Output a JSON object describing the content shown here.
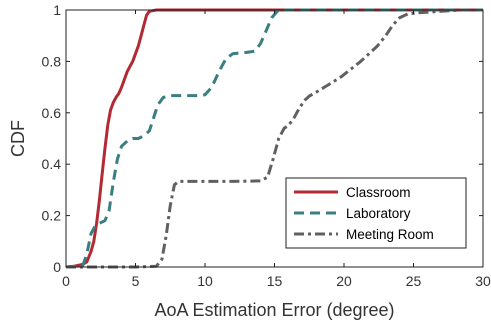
{
  "chart_data": {
    "type": "line",
    "title": "",
    "xlabel": "AoA Estimation Error (degree)",
    "ylabel": "CDF",
    "xlim": [
      0,
      30
    ],
    "ylim": [
      0,
      1
    ],
    "xticks": [
      "0",
      "5",
      "10",
      "15",
      "20",
      "25",
      "30"
    ],
    "yticks": [
      "0",
      "0.2",
      "0.4",
      "0.6",
      "0.8",
      "1"
    ],
    "grid": false,
    "legend_position": "bottom-right",
    "series": [
      {
        "name": "Classroom",
        "color": "#b22a33",
        "style": "solid",
        "points": [
          [
            0,
            0
          ],
          [
            0.6,
            0.003
          ],
          [
            1.2,
            0.01
          ],
          [
            1.5,
            0.02
          ],
          [
            1.8,
            0.06
          ],
          [
            2,
            0.1
          ],
          [
            2.2,
            0.17
          ],
          [
            2.4,
            0.26
          ],
          [
            2.6,
            0.36
          ],
          [
            2.8,
            0.46
          ],
          [
            3.0,
            0.55
          ],
          [
            3.2,
            0.61
          ],
          [
            3.4,
            0.64
          ],
          [
            3.6,
            0.66
          ],
          [
            3.8,
            0.675
          ],
          [
            4.0,
            0.7
          ],
          [
            4.2,
            0.73
          ],
          [
            4.4,
            0.76
          ],
          [
            4.6,
            0.78
          ],
          [
            4.8,
            0.8
          ],
          [
            5.0,
            0.83
          ],
          [
            5.2,
            0.86
          ],
          [
            5.4,
            0.9
          ],
          [
            5.6,
            0.94
          ],
          [
            5.8,
            0.98
          ],
          [
            6.0,
            0.995
          ],
          [
            6.5,
            1
          ],
          [
            30,
            1
          ]
        ]
      },
      {
        "name": "Laboratory",
        "color": "#3a7e80",
        "style": "dashed",
        "points": [
          [
            0,
            0
          ],
          [
            1.2,
            0.005
          ],
          [
            1.5,
            0.05
          ],
          [
            1.8,
            0.13
          ],
          [
            2.1,
            0.16
          ],
          [
            2.4,
            0.17
          ],
          [
            2.8,
            0.18
          ],
          [
            3.1,
            0.22
          ],
          [
            3.4,
            0.33
          ],
          [
            3.7,
            0.42
          ],
          [
            4.0,
            0.47
          ],
          [
            4.4,
            0.49
          ],
          [
            4.8,
            0.5
          ],
          [
            5.2,
            0.5
          ],
          [
            5.6,
            0.51
          ],
          [
            6.0,
            0.53
          ],
          [
            6.3,
            0.58
          ],
          [
            6.6,
            0.63
          ],
          [
            7.0,
            0.66
          ],
          [
            7.5,
            0.667
          ],
          [
            8.5,
            0.667
          ],
          [
            9.5,
            0.667
          ],
          [
            10.0,
            0.67
          ],
          [
            10.5,
            0.7
          ],
          [
            11.0,
            0.76
          ],
          [
            11.5,
            0.81
          ],
          [
            12.0,
            0.83
          ],
          [
            13.0,
            0.835
          ],
          [
            13.6,
            0.84
          ],
          [
            14.0,
            0.87
          ],
          [
            14.4,
            0.92
          ],
          [
            14.8,
            0.97
          ],
          [
            15.2,
            0.995
          ],
          [
            15.5,
            1
          ],
          [
            30,
            1
          ]
        ]
      },
      {
        "name": "Meeting Room",
        "color": "#606060",
        "style": "dashdot",
        "points": [
          [
            0,
            0
          ],
          [
            5.0,
            0
          ],
          [
            6.5,
            0.003
          ],
          [
            6.9,
            0.03
          ],
          [
            7.2,
            0.12
          ],
          [
            7.5,
            0.24
          ],
          [
            7.8,
            0.32
          ],
          [
            8.1,
            0.333
          ],
          [
            10,
            0.333
          ],
          [
            12,
            0.333
          ],
          [
            14,
            0.335
          ],
          [
            14.5,
            0.35
          ],
          [
            14.9,
            0.42
          ],
          [
            15.3,
            0.5
          ],
          [
            15.7,
            0.54
          ],
          [
            16.0,
            0.55
          ],
          [
            16.4,
            0.58
          ],
          [
            16.8,
            0.62
          ],
          [
            17.2,
            0.65
          ],
          [
            17.5,
            0.665
          ],
          [
            18.0,
            0.68
          ],
          [
            18.6,
            0.7
          ],
          [
            19.2,
            0.72
          ],
          [
            19.8,
            0.74
          ],
          [
            20.5,
            0.77
          ],
          [
            21.2,
            0.8
          ],
          [
            21.8,
            0.83
          ],
          [
            22.4,
            0.86
          ],
          [
            23.0,
            0.9
          ],
          [
            23.5,
            0.94
          ],
          [
            24.0,
            0.97
          ],
          [
            24.6,
            0.985
          ],
          [
            25.5,
            0.99
          ],
          [
            27,
            0.995
          ],
          [
            28.5,
            1
          ],
          [
            30,
            1
          ]
        ]
      }
    ]
  }
}
